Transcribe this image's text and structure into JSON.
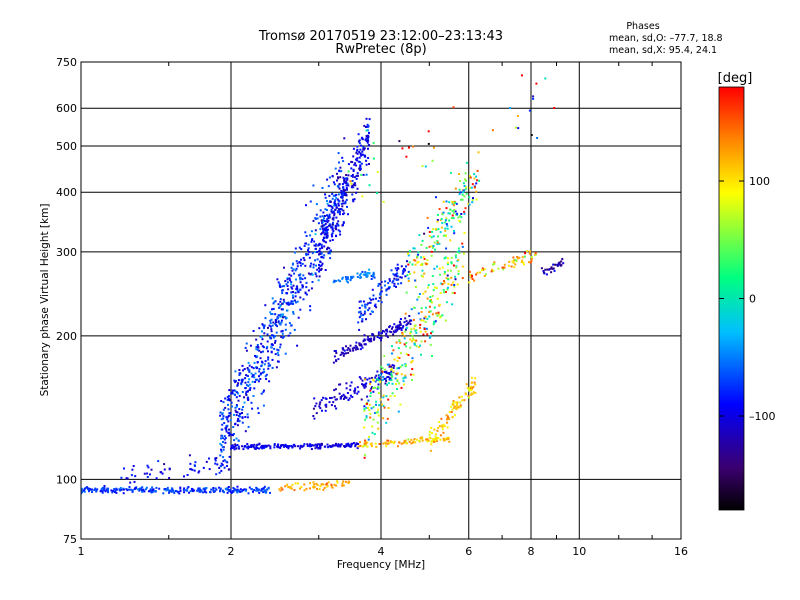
{
  "chart_data": {
    "type": "scatter",
    "title": "Tromsø 20170519 23:12:00–23:13:43",
    "subtitle": "RwPretec (8p)",
    "xlabel": "Frequency [MHz]",
    "ylabel": "Stationary phase Virtual Height [km]",
    "x_scale": "log",
    "y_scale": "log",
    "xlim": [
      1,
      16
    ],
    "ylim": [
      75,
      750
    ],
    "x_ticks": [
      "1",
      "2",
      "4",
      "6",
      "8",
      "10",
      "16"
    ],
    "y_ticks": [
      "75",
      "100",
      "200",
      "300",
      "400",
      "500",
      "600",
      "750"
    ],
    "grid": true,
    "phases_box": {
      "heading": "Phases",
      "line_o": "mean, sd,O: –77.7, 18.8",
      "line_x": "mean, sd,X:  95.4, 24.1"
    },
    "colorbar": {
      "label": "[deg]",
      "min": -180,
      "max": 180,
      "ticks": [
        "100",
        "0",
        "–100"
      ],
      "colors": [
        "#000000",
        "#3b0070",
        "#0000ff",
        "#00bfff",
        "#00ff80",
        "#ffff00",
        "#ff8000",
        "#ff0000"
      ]
    },
    "series": [
      {
        "clusters": [
          {
            "x0": 1.0,
            "x1": 2.4,
            "h0": 95,
            "h1": 95,
            "jitter": 0.015,
            "n": 260,
            "phase": -75,
            "psd": 12
          },
          {
            "x0": 1.2,
            "x1": 2.0,
            "h0": 100,
            "h1": 108,
            "jitter": 0.05,
            "n": 60,
            "phase": -95,
            "psd": 15
          },
          {
            "x0": 2.5,
            "x1": 3.5,
            "h0": 96,
            "h1": 98,
            "jitter": 0.02,
            "n": 60,
            "phase": 120,
            "psd": 15
          },
          {
            "x0": 2.0,
            "x1": 3.6,
            "h0": 117,
            "h1": 118,
            "jitter": 0.012,
            "n": 170,
            "phase": -100,
            "psd": 10
          },
          {
            "x0": 3.6,
            "x1": 5.5,
            "h0": 118,
            "h1": 122,
            "jitter": 0.015,
            "n": 90,
            "phase": 115,
            "psd": 20
          },
          {
            "x0": 1.9,
            "x1": 3.4,
            "h0": 120,
            "h1": 420,
            "jitter": 0.2,
            "n": 700,
            "phase": -80,
            "psd": 22
          },
          {
            "x0": 3.0,
            "x1": 3.8,
            "h0": 300,
            "h1": 520,
            "jitter": 0.12,
            "n": 260,
            "phase": -95,
            "psd": 18
          },
          {
            "x0": 3.2,
            "x1": 4.6,
            "h0": 180,
            "h1": 215,
            "jitter": 0.03,
            "n": 130,
            "phase": -110,
            "psd": 10
          },
          {
            "x0": 2.9,
            "x1": 4.3,
            "h0": 140,
            "h1": 170,
            "jitter": 0.05,
            "n": 120,
            "phase": -105,
            "psd": 12
          },
          {
            "x0": 3.6,
            "x1": 4.5,
            "h0": 220,
            "h1": 280,
            "jitter": 0.06,
            "n": 100,
            "phase": -80,
            "psd": 18
          },
          {
            "x0": 3.2,
            "x1": 3.9,
            "h0": 260,
            "h1": 270,
            "jitter": 0.02,
            "n": 50,
            "phase": -50,
            "psd": 12
          },
          {
            "x0": 3.7,
            "x1": 5.9,
            "h0": 130,
            "h1": 300,
            "jitter": 0.18,
            "n": 320,
            "phase": 60,
            "psd": 70
          },
          {
            "x0": 4.5,
            "x1": 6.3,
            "h0": 270,
            "h1": 440,
            "jitter": 0.12,
            "n": 180,
            "phase": 40,
            "psd": 80
          },
          {
            "x0": 5.0,
            "x1": 6.2,
            "h0": 120,
            "h1": 160,
            "jitter": 0.05,
            "n": 90,
            "phase": 110,
            "psd": 20
          },
          {
            "x0": 6.0,
            "x1": 8.2,
            "h0": 265,
            "h1": 295,
            "jitter": 0.03,
            "n": 60,
            "phase": 120,
            "psd": 35
          },
          {
            "x0": 8.4,
            "x1": 9.3,
            "h0": 270,
            "h1": 285,
            "jitter": 0.02,
            "n": 30,
            "phase": -120,
            "psd": 20
          },
          {
            "x0": 3.4,
            "x1": 9.2,
            "h0": 420,
            "h1": 650,
            "jitter": 0.15,
            "n": 40,
            "phase": 30,
            "psd": 120
          }
        ]
      }
    ]
  }
}
